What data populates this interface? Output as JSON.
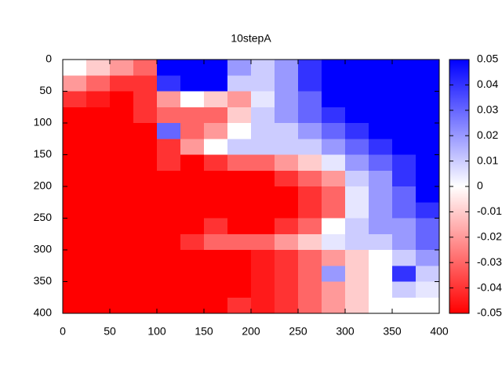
{
  "chart_data": {
    "type": "heatmap",
    "title": "10stepA",
    "x": [
      12.5,
      37.5,
      62.5,
      87.5,
      112.5,
      137.5,
      162.5,
      187.5,
      212.5,
      237.5,
      262.5,
      287.5,
      312.5,
      337.5,
      362.5,
      387.5
    ],
    "y": [
      12.5,
      37.5,
      62.5,
      87.5,
      112.5,
      137.5,
      162.5,
      187.5,
      212.5,
      237.5,
      262.5,
      287.5,
      312.5,
      337.5,
      362.5,
      387.5
    ],
    "z": [
      [
        0,
        -0.01,
        -0.02,
        -0.03,
        0.05,
        0.05,
        0.05,
        0.02,
        0.01,
        0.02,
        0.04,
        0.05,
        0.05,
        0.05,
        0.05,
        0.05
      ],
      [
        -0.02,
        -0.03,
        -0.04,
        -0.04,
        0.04,
        0.05,
        0.05,
        0.01,
        0.01,
        0.02,
        0.04,
        0.05,
        0.05,
        0.05,
        0.05,
        0.05
      ],
      [
        -0.04,
        -0.045,
        -0.05,
        -0.04,
        -0.02,
        0,
        -0.01,
        -0.02,
        0.005,
        0.02,
        0.03,
        0.05,
        0.05,
        0.05,
        0.05,
        0.05
      ],
      [
        -0.05,
        -0.05,
        -0.05,
        -0.04,
        -0.03,
        -0.03,
        -0.03,
        -0.01,
        0.01,
        0.02,
        0.03,
        0.04,
        0.05,
        0.05,
        0.05,
        0.05
      ],
      [
        -0.05,
        -0.05,
        -0.05,
        -0.05,
        0.03,
        -0.03,
        -0.02,
        0,
        0.01,
        0.01,
        0.02,
        0.03,
        0.04,
        0.05,
        0.05,
        0.05
      ],
      [
        -0.05,
        -0.05,
        -0.05,
        -0.05,
        -0.04,
        -0.02,
        0,
        0.01,
        0.01,
        0.01,
        0.01,
        0.02,
        0.03,
        0.04,
        0.05,
        0.05
      ],
      [
        -0.05,
        -0.05,
        -0.05,
        -0.05,
        -0.04,
        -0.05,
        -0.04,
        -0.03,
        -0.03,
        -0.02,
        -0.01,
        0.005,
        0.02,
        0.03,
        0.04,
        0.05
      ],
      [
        -0.05,
        -0.05,
        -0.05,
        -0.05,
        -0.05,
        -0.05,
        -0.05,
        -0.05,
        -0.05,
        -0.04,
        -0.03,
        -0.02,
        0.01,
        0.02,
        0.04,
        0.05
      ],
      [
        -0.05,
        -0.05,
        -0.05,
        -0.05,
        -0.05,
        -0.05,
        -0.05,
        -0.05,
        -0.05,
        -0.05,
        -0.04,
        -0.03,
        0.005,
        0.02,
        0.03,
        0.05
      ],
      [
        -0.05,
        -0.05,
        -0.05,
        -0.05,
        -0.05,
        -0.05,
        -0.05,
        -0.05,
        -0.05,
        -0.05,
        -0.04,
        -0.03,
        0.005,
        0.02,
        0.03,
        0.04
      ],
      [
        -0.05,
        -0.05,
        -0.05,
        -0.05,
        -0.05,
        -0.05,
        -0.04,
        -0.05,
        -0.05,
        -0.04,
        -0.03,
        0,
        0.01,
        0.02,
        0.02,
        0.03
      ],
      [
        -0.05,
        -0.05,
        -0.05,
        -0.05,
        -0.05,
        -0.04,
        -0.03,
        -0.03,
        -0.03,
        -0.02,
        -0.01,
        0.005,
        0.01,
        0.01,
        0.02,
        0.03
      ],
      [
        -0.05,
        -0.05,
        -0.05,
        -0.05,
        -0.05,
        -0.05,
        -0.05,
        -0.05,
        -0.045,
        -0.04,
        -0.03,
        -0.02,
        -0.01,
        0,
        0.01,
        0.02
      ],
      [
        -0.05,
        -0.05,
        -0.05,
        -0.05,
        -0.05,
        -0.05,
        -0.05,
        -0.05,
        -0.045,
        -0.04,
        -0.03,
        0.02,
        -0.01,
        0,
        0.04,
        0.01
      ],
      [
        -0.05,
        -0.05,
        -0.05,
        -0.05,
        -0.05,
        -0.05,
        -0.05,
        -0.05,
        -0.045,
        -0.04,
        -0.03,
        -0.02,
        -0.01,
        0,
        0.01,
        0.005
      ],
      [
        -0.05,
        -0.05,
        -0.05,
        -0.05,
        -0.05,
        -0.05,
        -0.05,
        -0.04,
        -0.045,
        -0.04,
        -0.03,
        -0.02,
        -0.01,
        0,
        0,
        0
      ]
    ],
    "xlim": [
      0,
      400
    ],
    "ylim": [
      400,
      0
    ],
    "xticks": [
      0,
      50,
      100,
      150,
      200,
      250,
      300,
      350,
      400
    ],
    "yticks": [
      0,
      50,
      100,
      150,
      200,
      250,
      300,
      350,
      400
    ],
    "colorlim": [
      -0.05,
      0.05
    ],
    "colorticks": [
      -0.05,
      -0.04,
      -0.03,
      -0.02,
      -0.01,
      0,
      0.01,
      0.02,
      0.03,
      0.04,
      0.05
    ],
    "colormap": [
      "#ff0000",
      "#ffffff",
      "#0000ff"
    ]
  }
}
